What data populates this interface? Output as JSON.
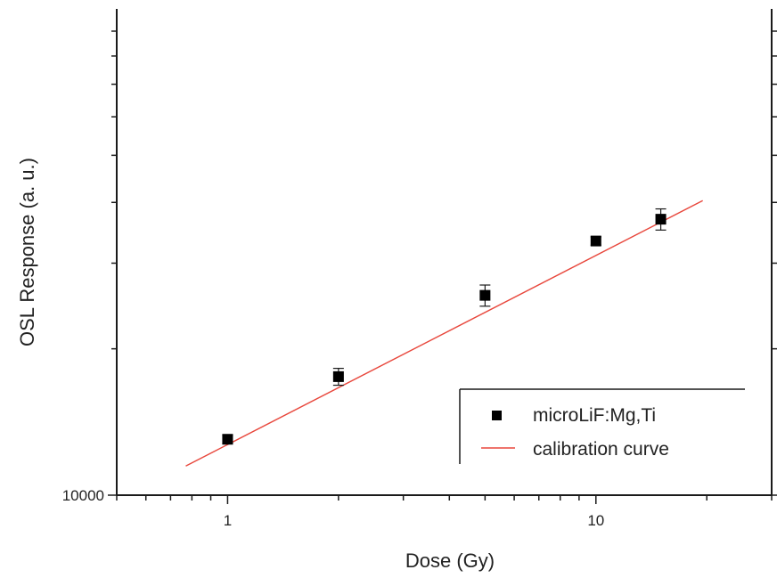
{
  "chart_data": {
    "type": "scatter",
    "xlabel": "Dose (Gy)",
    "ylabel": "OSL Response (a. u.)",
    "x_scale": "log",
    "y_scale": "log",
    "xlim": [
      0.5,
      30
    ],
    "ylim": [
      10000,
      100000
    ],
    "x_tick_labels": [
      {
        "value": 1,
        "label": "1"
      },
      {
        "value": 10,
        "label": "10"
      }
    ],
    "y_tick_labels": [
      {
        "value": 10000,
        "label": "10000"
      }
    ],
    "grid": false,
    "legend_position": "bottom-right",
    "series": [
      {
        "name": "microLiF:Mg,Ti",
        "kind": "points",
        "marker": "square",
        "color": "#000000",
        "points": [
          {
            "x": 1,
            "y": 13030,
            "err": 260
          },
          {
            "x": 2,
            "y": 17530,
            "err": 700
          },
          {
            "x": 5,
            "y": 25760,
            "err": 1290
          },
          {
            "x": 10,
            "y": 33320,
            "err": 650
          },
          {
            "x": 15,
            "y": 36940,
            "err": 1850
          }
        ]
      },
      {
        "name": "calibration curve",
        "kind": "line",
        "color": "#e8473c",
        "x": [
          0.77,
          19.5
        ],
        "y": [
          11480,
          40340
        ]
      }
    ]
  }
}
